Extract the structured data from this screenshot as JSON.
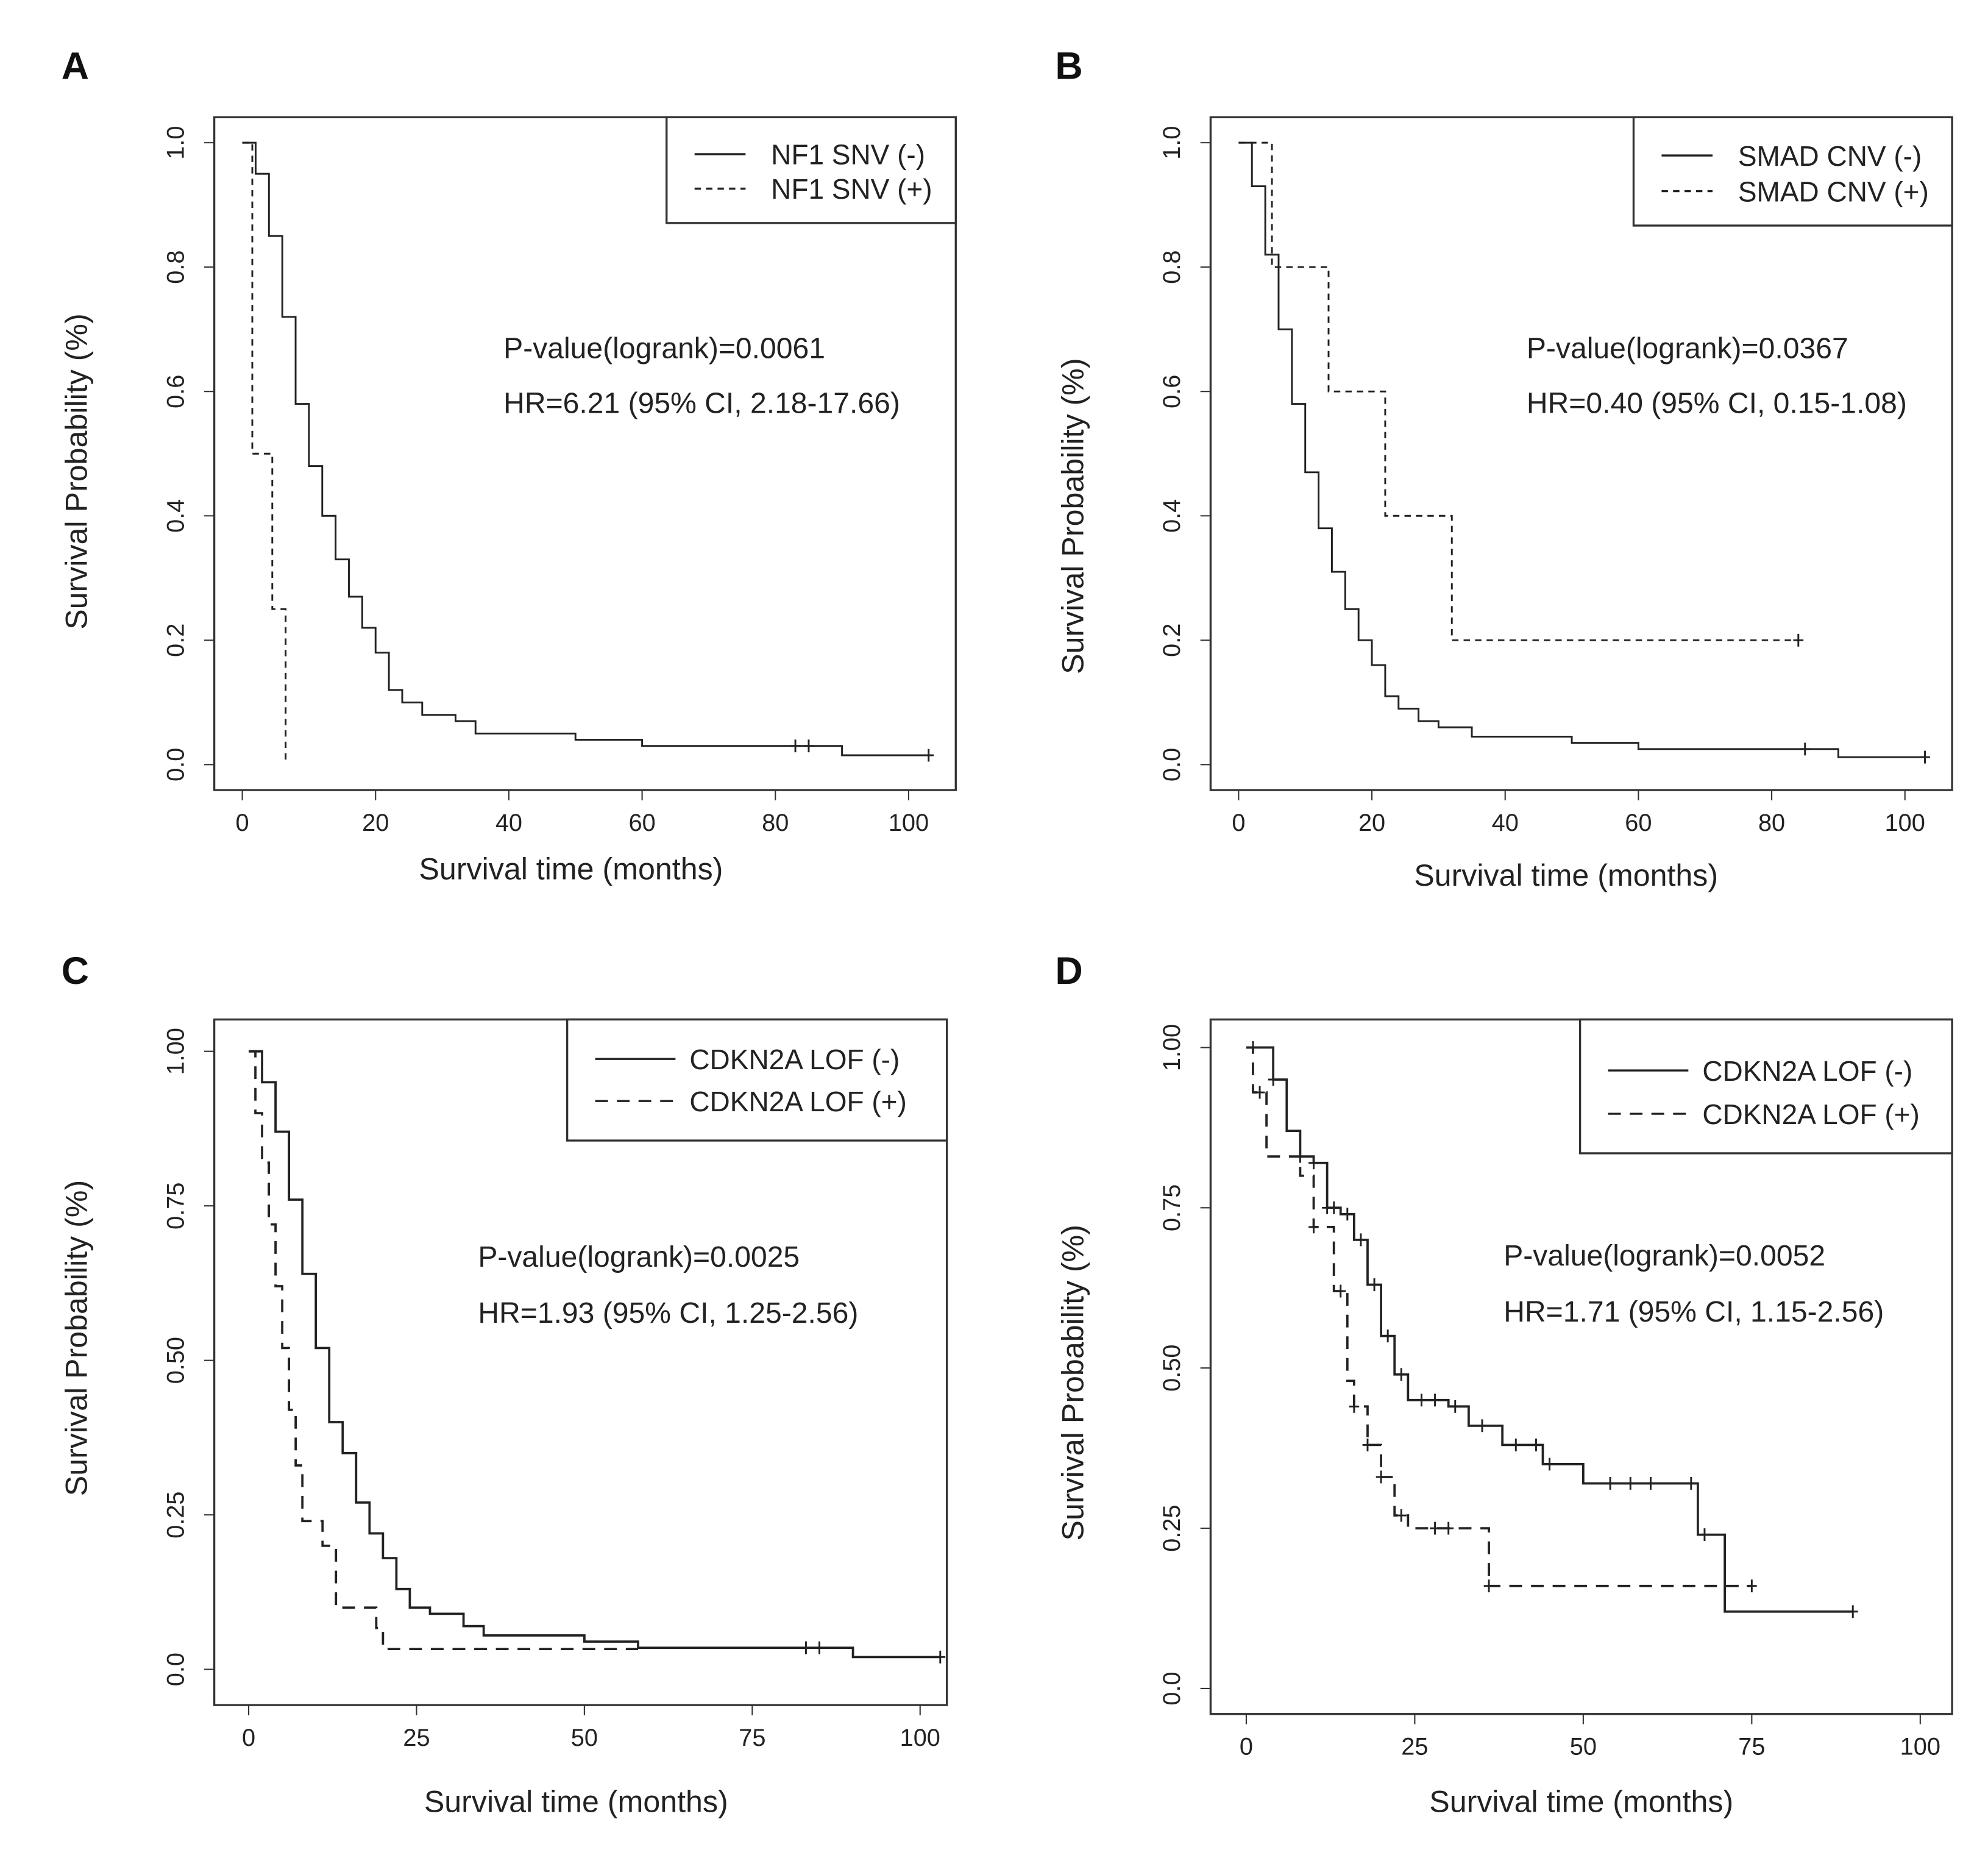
{
  "chart_data": [
    {
      "panel": "A",
      "type": "line",
      "subtype": "kaplan-meier",
      "xlabel": "Survival time (months)",
      "ylabel": "Survival Probability (%)",
      "xlim": [
        0,
        100
      ],
      "ylim": [
        0,
        1
      ],
      "xticks": [
        "0",
        "20",
        "40",
        "60",
        "80",
        "100"
      ],
      "xtick_values": [
        0,
        20,
        40,
        60,
        80,
        100
      ],
      "yticks": [
        "0.0",
        "0.2",
        "0.4",
        "0.6",
        "0.8",
        "1.0"
      ],
      "ytick_values": [
        0,
        0.2,
        0.4,
        0.6,
        0.8,
        1.0
      ],
      "legend_position": "top-right",
      "annotations": [
        "P-value(logrank)=0.0061",
        "HR=6.21  (95% CI, 2.18-17.66)"
      ],
      "series": [
        {
          "name": "NF1 SNV (-)",
          "style": "solid",
          "steps": [
            [
              0,
              1.0
            ],
            [
              2,
              0.95
            ],
            [
              4,
              0.85
            ],
            [
              6,
              0.72
            ],
            [
              8,
              0.58
            ],
            [
              10,
              0.48
            ],
            [
              12,
              0.4
            ],
            [
              14,
              0.33
            ],
            [
              16,
              0.27
            ],
            [
              18,
              0.22
            ],
            [
              20,
              0.18
            ],
            [
              22,
              0.12
            ],
            [
              24,
              0.1
            ],
            [
              27,
              0.08
            ],
            [
              32,
              0.07
            ],
            [
              35,
              0.05
            ],
            [
              50,
              0.04
            ],
            [
              60,
              0.03
            ],
            [
              90,
              0.015
            ]
          ],
          "end": 103,
          "censored": [
            83,
            85,
            103
          ]
        },
        {
          "name": "NF1 SNV (+)",
          "style": "dashed",
          "steps": [
            [
              0,
              1.0
            ],
            [
              1.5,
              0.5
            ],
            [
              4.5,
              0.25
            ],
            [
              6.5,
              0.0
            ]
          ],
          "end": 6.5,
          "censored": []
        }
      ]
    },
    {
      "panel": "B",
      "type": "line",
      "subtype": "kaplan-meier",
      "xlabel": "Survival time (months)",
      "ylabel": "Survival Probability (%)",
      "xlim": [
        0,
        100
      ],
      "ylim": [
        0,
        1
      ],
      "xticks": [
        "0",
        "20",
        "40",
        "60",
        "80",
        "100"
      ],
      "xtick_values": [
        0,
        20,
        40,
        60,
        80,
        100
      ],
      "yticks": [
        "0.0",
        "0.2",
        "0.4",
        "0.6",
        "0.8",
        "1.0"
      ],
      "ytick_values": [
        0,
        0.2,
        0.4,
        0.6,
        0.8,
        1.0
      ],
      "legend_position": "top-right",
      "annotations": [
        "P-value(logrank)=0.0367",
        "HR=0.40  (95% CI, 0.15-1.08)"
      ],
      "series": [
        {
          "name": "SMAD CNV (-)",
          "style": "solid",
          "steps": [
            [
              0,
              1.0
            ],
            [
              2,
              0.93
            ],
            [
              4,
              0.82
            ],
            [
              6,
              0.7
            ],
            [
              8,
              0.58
            ],
            [
              10,
              0.47
            ],
            [
              12,
              0.38
            ],
            [
              14,
              0.31
            ],
            [
              16,
              0.25
            ],
            [
              18,
              0.2
            ],
            [
              20,
              0.16
            ],
            [
              22,
              0.11
            ],
            [
              24,
              0.09
            ],
            [
              27,
              0.07
            ],
            [
              30,
              0.06
            ],
            [
              35,
              0.045
            ],
            [
              50,
              0.035
            ],
            [
              60,
              0.025
            ],
            [
              90,
              0.012
            ]
          ],
          "end": 103,
          "censored": [
            85,
            103
          ]
        },
        {
          "name": "SMAD CNV (+)",
          "style": "dashed",
          "steps": [
            [
              0,
              1.0
            ],
            [
              5,
              0.8
            ],
            [
              13.5,
              0.6
            ],
            [
              22,
              0.4
            ],
            [
              32,
              0.2
            ]
          ],
          "end": 84,
          "censored": [
            84
          ]
        }
      ]
    },
    {
      "panel": "C",
      "type": "line",
      "subtype": "kaplan-meier",
      "xlabel": "Survival time (months)",
      "ylabel": "Survival Probability (%)",
      "xlim": [
        0,
        100
      ],
      "ylim": [
        0,
        1
      ],
      "xticks": [
        "0",
        "25",
        "50",
        "75",
        "100"
      ],
      "xtick_values": [
        0,
        25,
        50,
        75,
        100
      ],
      "yticks": [
        "0.0",
        "0.25",
        "0.50",
        "0.75",
        "1.00"
      ],
      "ytick_values": [
        0,
        0.25,
        0.5,
        0.75,
        1.0
      ],
      "legend_position": "top-right",
      "annotations": [
        "P-value(logrank)=0.0025",
        "HR=1.93 (95% CI, 1.25-2.56)"
      ],
      "series": [
        {
          "name": "CDKN2A LOF (-)",
          "style": "solid",
          "steps": [
            [
              0,
              1.0
            ],
            [
              2,
              0.95
            ],
            [
              4,
              0.87
            ],
            [
              6,
              0.76
            ],
            [
              8,
              0.64
            ],
            [
              10,
              0.52
            ],
            [
              12,
              0.4
            ],
            [
              14,
              0.35
            ],
            [
              16,
              0.27
            ],
            [
              18,
              0.22
            ],
            [
              20,
              0.18
            ],
            [
              22,
              0.13
            ],
            [
              24,
              0.1
            ],
            [
              27,
              0.09
            ],
            [
              32,
              0.07
            ],
            [
              35,
              0.055
            ],
            [
              50,
              0.045
            ],
            [
              58,
              0.035
            ],
            [
              90,
              0.02
            ]
          ],
          "end": 103,
          "censored": [
            83,
            85,
            103
          ]
        },
        {
          "name": "CDKN2A LOF (+)",
          "style": "dashed",
          "steps": [
            [
              0,
              1.0
            ],
            [
              1,
              0.9
            ],
            [
              2,
              0.82
            ],
            [
              3,
              0.72
            ],
            [
              4,
              0.62
            ],
            [
              5,
              0.52
            ],
            [
              6,
              0.42
            ],
            [
              7,
              0.33
            ],
            [
              8,
              0.24
            ],
            [
              11,
              0.2
            ],
            [
              13,
              0.1
            ],
            [
              19,
              0.067
            ],
            [
              20,
              0.033
            ]
          ],
          "end": 58,
          "censored": []
        }
      ]
    },
    {
      "panel": "D",
      "type": "line",
      "subtype": "kaplan-meier",
      "xlabel": "Survival time (months)",
      "ylabel": "Survival Probability (%)",
      "xlim": [
        0,
        100
      ],
      "ylim": [
        0,
        1
      ],
      "xticks": [
        "0",
        "25",
        "50",
        "75",
        "100"
      ],
      "xtick_values": [
        0,
        25,
        50,
        75,
        100
      ],
      "yticks": [
        "0.0",
        "0.25",
        "0.50",
        "0.75",
        "1.00"
      ],
      "ytick_values": [
        0,
        0.25,
        0.5,
        0.75,
        1.0
      ],
      "legend_position": "top-right",
      "annotations": [
        "P-value(logrank)=0.0052",
        "HR=1.71 (95% CI, 1.15-2.56)"
      ],
      "series": [
        {
          "name": "CDKN2A LOF (-)",
          "style": "solid",
          "steps": [
            [
              0,
              1.0
            ],
            [
              4,
              0.95
            ],
            [
              6,
              0.87
            ],
            [
              8,
              0.83
            ],
            [
              10,
              0.82
            ],
            [
              12,
              0.75
            ],
            [
              14,
              0.74
            ],
            [
              16,
              0.7
            ],
            [
              18,
              0.63
            ],
            [
              20,
              0.55
            ],
            [
              22,
              0.49
            ],
            [
              24,
              0.45
            ],
            [
              30,
              0.44
            ],
            [
              33,
              0.41
            ],
            [
              38,
              0.38
            ],
            [
              44,
              0.35
            ],
            [
              50,
              0.32
            ],
            [
              67,
              0.24
            ],
            [
              71,
              0.12
            ]
          ],
          "end": 90,
          "censored": [
            1,
            4,
            8,
            10,
            12,
            13,
            15,
            17,
            19,
            21,
            23,
            26,
            28,
            31,
            35,
            40,
            43,
            45,
            54,
            57,
            60,
            66,
            68,
            90
          ]
        },
        {
          "name": "CDKN2A LOF (+)",
          "style": "dashed",
          "steps": [
            [
              0,
              1.0
            ],
            [
              1,
              0.93
            ],
            [
              3,
              0.83
            ],
            [
              8,
              0.8
            ],
            [
              10,
              0.72
            ],
            [
              13,
              0.62
            ],
            [
              15,
              0.48
            ],
            [
              16,
              0.44
            ],
            [
              18,
              0.38
            ],
            [
              20,
              0.33
            ],
            [
              22,
              0.27
            ],
            [
              24,
              0.25
            ],
            [
              36,
              0.16
            ]
          ],
          "end": 75,
          "censored": [
            2,
            10,
            14,
            16,
            18,
            20,
            23,
            28,
            30,
            36,
            75
          ]
        }
      ]
    }
  ]
}
